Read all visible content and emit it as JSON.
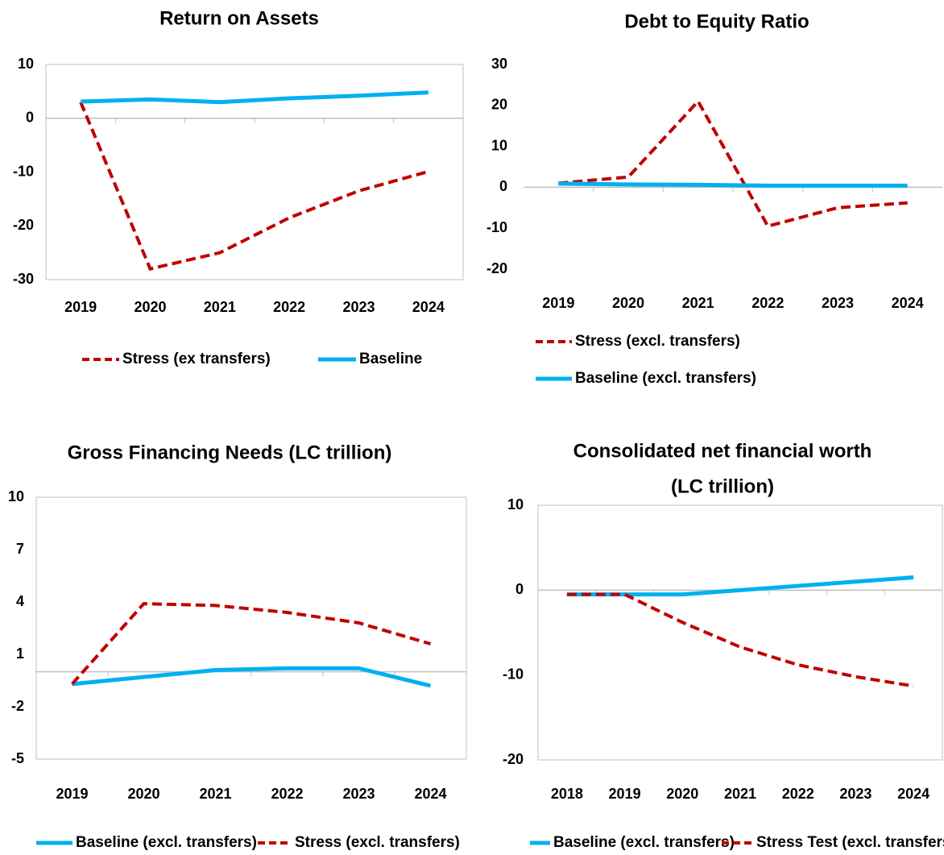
{
  "chart_data": [
    {
      "type": "line",
      "title": "Return on Assets",
      "categories": [
        "2019",
        "2020",
        "2021",
        "2022",
        "2023",
        "2024"
      ],
      "ylim": [
        -30,
        10
      ],
      "yticks": [
        -30,
        -20,
        -10,
        0,
        10
      ],
      "series": [
        {
          "name": "Stress (ex transfers)",
          "color": "#c00000",
          "dashed": true,
          "values": [
            3.0,
            -28,
            -25,
            -18.5,
            -13.5,
            -9.9
          ]
        },
        {
          "name": "Baseline",
          "color": "#00b0f0",
          "dashed": false,
          "values": [
            3.1,
            3.5,
            3.0,
            3.7,
            4.2,
            4.8
          ]
        }
      ]
    },
    {
      "type": "line",
      "title": "Debt to Equity Ratio",
      "categories": [
        "2019",
        "2020",
        "2021",
        "2022",
        "2023",
        "2024"
      ],
      "ylim": [
        -20,
        30
      ],
      "yticks": [
        -20,
        -10,
        0,
        10,
        20,
        30
      ],
      "series": [
        {
          "name": "Stress (excl. transfers)",
          "color": "#c00000",
          "dashed": true,
          "values": [
            1.0,
            2.5,
            21,
            -9.5,
            -5,
            -3.8
          ]
        },
        {
          "name": "Baseline (excl. transfers)",
          "color": "#00b0f0",
          "dashed": false,
          "values": [
            0.9,
            0.7,
            0.6,
            0.4,
            0.4,
            0.4
          ]
        }
      ]
    },
    {
      "type": "line",
      "title": "Gross Financing Needs (LC trillion)",
      "categories": [
        "2019",
        "2020",
        "2021",
        "2022",
        "2023",
        "2024"
      ],
      "ylim": [
        -5,
        10
      ],
      "yticks": [
        -5,
        -2,
        1,
        4,
        7,
        10
      ],
      "series": [
        {
          "name": "Baseline (excl. transfers)",
          "color": "#00b0f0",
          "dashed": false,
          "values": [
            -0.7,
            -0.3,
            0.1,
            0.2,
            0.2,
            -0.8
          ]
        },
        {
          "name": "Stress (excl. transfers)",
          "color": "#c00000",
          "dashed": true,
          "values": [
            -0.7,
            3.9,
            3.8,
            3.4,
            2.8,
            1.6
          ]
        }
      ]
    },
    {
      "type": "line",
      "title": [
        "Consolidated net financial worth",
        "(LC trillion)"
      ],
      "categories": [
        "2018",
        "2019",
        "2020",
        "2021",
        "2022",
        "2023",
        "2024"
      ],
      "ylim": [
        -20,
        10
      ],
      "yticks": [
        -20,
        -10,
        0,
        10
      ],
      "series": [
        {
          "name": "Baseline (excl. transfers)",
          "color": "#00b0f0",
          "dashed": false,
          "values": [
            -0.5,
            -0.5,
            -0.5,
            0.0,
            0.5,
            1.0,
            1.5
          ]
        },
        {
          "name": "Stress Test (excl. transfers)",
          "color": "#c00000",
          "dashed": true,
          "values": [
            -0.5,
            -0.5,
            -3.8,
            -6.7,
            -8.8,
            -10.2,
            -11.3
          ]
        }
      ]
    }
  ]
}
